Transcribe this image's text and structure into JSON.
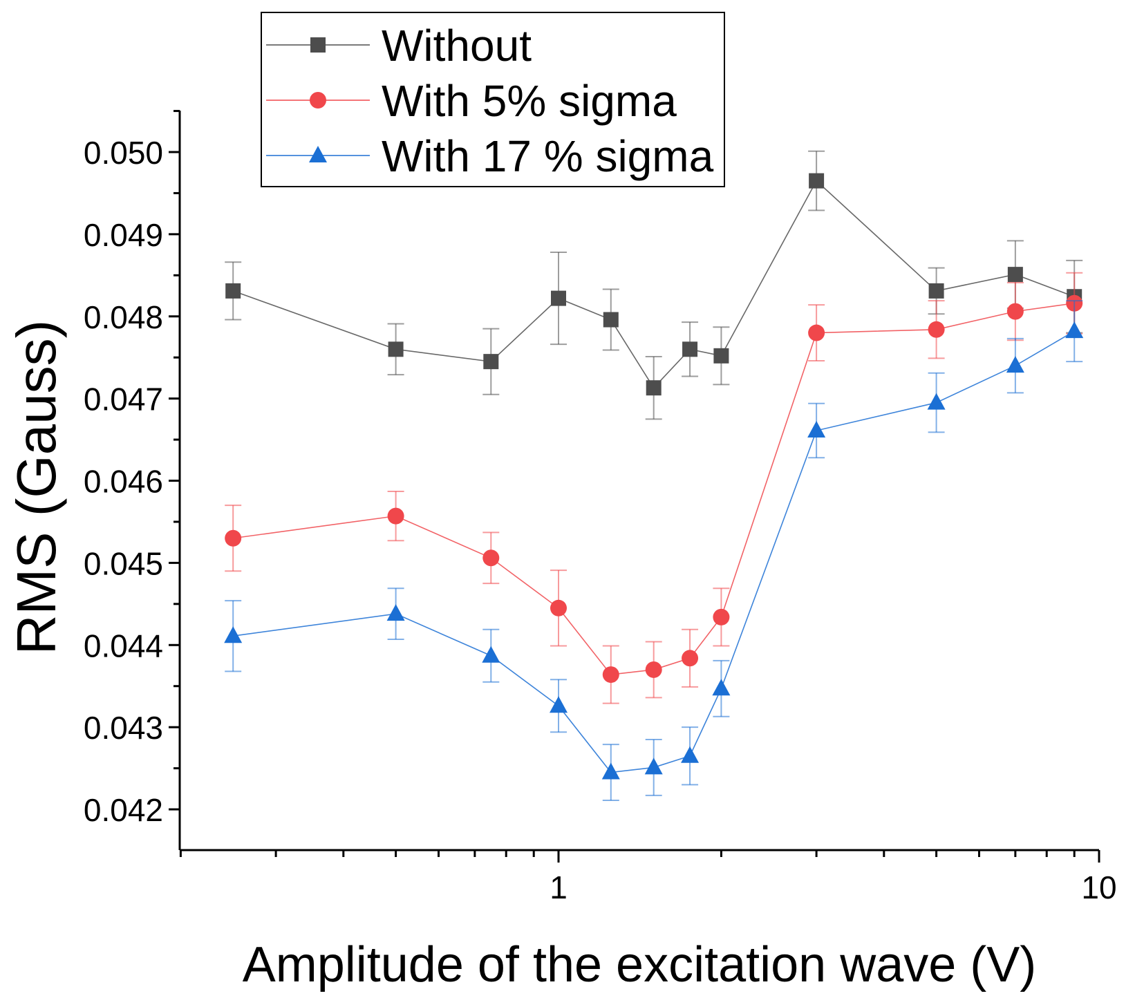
{
  "chart_data": {
    "type": "line",
    "xscale": "log",
    "xlabel": "Amplitude of the excitation wave (V)",
    "ylabel": "RMS (Gauss)",
    "xlim": [
      0.2,
      10
    ],
    "ylim": [
      0.0415,
      0.0505
    ],
    "x_ticks": [
      1,
      10
    ],
    "x_tick_labels": [
      "1",
      "10"
    ],
    "y_ticks": [
      0.042,
      0.043,
      0.044,
      0.045,
      0.046,
      0.047,
      0.048,
      0.049,
      0.05
    ],
    "y_tick_labels": [
      "0.042",
      "0.043",
      "0.044",
      "0.045",
      "0.046",
      "0.047",
      "0.048",
      "0.049",
      "0.050"
    ],
    "legend_position": "top-left",
    "x": [
      0.25,
      0.5,
      0.75,
      1.0,
      1.25,
      1.5,
      1.75,
      2.0,
      3.0,
      5.0,
      7.0,
      9.0
    ],
    "series": [
      {
        "name": "Without",
        "color": "#4d4d4d",
        "marker": "square",
        "values": [
          0.04831,
          0.0476,
          0.04745,
          0.04822,
          0.04796,
          0.04713,
          0.0476,
          0.04752,
          0.04965,
          0.04831,
          0.04851,
          0.04824
        ],
        "errors": [
          0.00035,
          0.00031,
          0.0004,
          0.00056,
          0.00037,
          0.00038,
          0.00033,
          0.00035,
          0.00036,
          0.00028,
          0.00041,
          0.00044
        ]
      },
      {
        "name": "With 5% sigma",
        "color": "#f0474b",
        "marker": "circle",
        "values": [
          0.0453,
          0.04557,
          0.04506,
          0.04445,
          0.04364,
          0.0437,
          0.04384,
          0.04434,
          0.0478,
          0.04784,
          0.04806,
          0.04816
        ],
        "errors": [
          0.0004,
          0.0003,
          0.00031,
          0.00046,
          0.00035,
          0.00034,
          0.00035,
          0.00035,
          0.00034,
          0.00035,
          0.00035,
          0.00037
        ]
      },
      {
        "name": "With 17 % sigma",
        "color": "#1b6fd4",
        "marker": "triangle",
        "values": [
          0.04411,
          0.04438,
          0.04387,
          0.04326,
          0.04245,
          0.04251,
          0.04265,
          0.04347,
          0.04661,
          0.04695,
          0.0474,
          0.04782
        ],
        "errors": [
          0.00043,
          0.00031,
          0.00032,
          0.00032,
          0.00034,
          0.00034,
          0.00035,
          0.00034,
          0.00033,
          0.00036,
          0.00033,
          0.00037
        ]
      }
    ]
  }
}
